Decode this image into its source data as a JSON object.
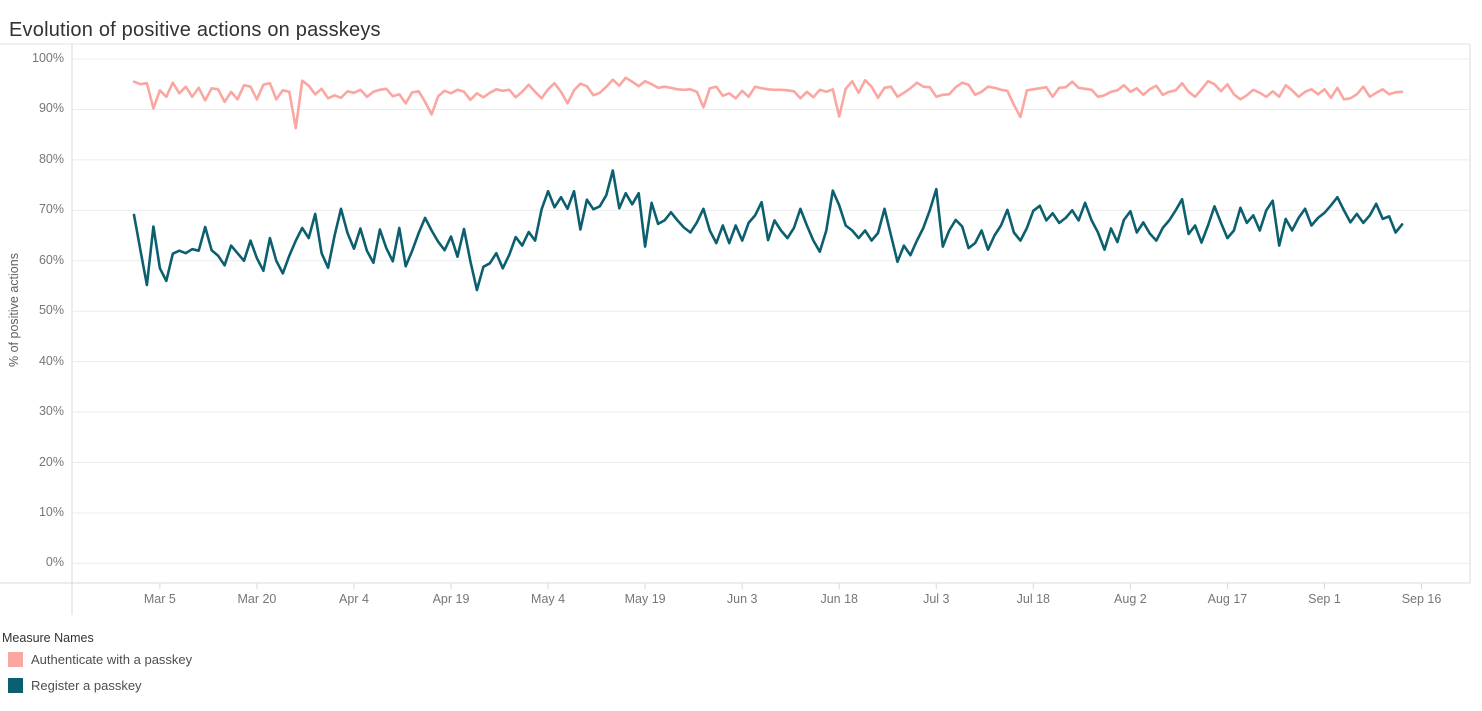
{
  "header": {
    "title": "Evolution of positive actions on passkeys"
  },
  "colors": {
    "title_text": "#323232",
    "tick_text": "#767676",
    "gridline": "#ececec",
    "axis_border": "#d9d9d9",
    "series_authenticate": "#FAA7A2",
    "series_register": "#0C5F6F"
  },
  "legend": {
    "title": "Measure Names",
    "position": "bottom-left",
    "items": [
      {
        "label": "Authenticate with a passkey",
        "color": "#FAA7A2"
      },
      {
        "label": "Register a passkey",
        "color": "#0C5F6F"
      }
    ]
  },
  "chart_data": {
    "type": "line",
    "title": "Evolution of positive actions on passkeys",
    "xlabel": "",
    "ylabel": "% of positive actions",
    "ylim": [
      0,
      100
    ],
    "grid": true,
    "legend_position": "bottom-left",
    "y_ticks": [
      "0%",
      "10%",
      "20%",
      "30%",
      "40%",
      "50%",
      "60%",
      "70%",
      "80%",
      "90%",
      "100%"
    ],
    "x_axis": {
      "start": "Mar 1",
      "end": "Sep 13",
      "frequency": "daily",
      "points": 197
    },
    "x_ticks": [
      {
        "label": "Mar 5",
        "day": 4
      },
      {
        "label": "Mar 20",
        "day": 19
      },
      {
        "label": "Apr 4",
        "day": 34
      },
      {
        "label": "Apr 19",
        "day": 49
      },
      {
        "label": "May 4",
        "day": 64
      },
      {
        "label": "May 19",
        "day": 79
      },
      {
        "label": "Jun 3",
        "day": 94
      },
      {
        "label": "Jun 18",
        "day": 109
      },
      {
        "label": "Jul 3",
        "day": 124
      },
      {
        "label": "Jul 18",
        "day": 139
      },
      {
        "label": "Aug 2",
        "day": 154
      },
      {
        "label": "Aug 17",
        "day": 169
      },
      {
        "label": "Sep 1",
        "day": 184
      },
      {
        "label": "Sep 16",
        "day": 199
      }
    ],
    "series": [
      {
        "name": "Authenticate with a passkey",
        "color": "#FAA7A2",
        "values": [
          95.5,
          95.0,
          95.2,
          90.2,
          93.8,
          92.5,
          95.3,
          93.2,
          94.5,
          92.5,
          94.3,
          91.8,
          94.2,
          94.0,
          91.5,
          93.5,
          92.0,
          94.8,
          94.5,
          92.0,
          94.9,
          95.2,
          92.0,
          93.8,
          93.5,
          86.3,
          95.7,
          94.7,
          93.0,
          94.1,
          92.2,
          92.8,
          92.3,
          93.6,
          93.3,
          93.9,
          92.5,
          93.5,
          93.9,
          94.1,
          92.6,
          93.0,
          91.2,
          93.4,
          93.6,
          91.5,
          89.0,
          92.6,
          93.7,
          93.2,
          93.9,
          93.5,
          91.9,
          93.2,
          92.4,
          93.3,
          94.0,
          93.7,
          93.9,
          92.4,
          93.5,
          94.9,
          93.5,
          92.2,
          94.0,
          95.2,
          93.5,
          91.2,
          93.8,
          95.1,
          94.6,
          92.8,
          93.3,
          94.5,
          95.9,
          94.7,
          96.3,
          95.5,
          94.6,
          95.6,
          95.0,
          94.3,
          94.5,
          94.3,
          94.0,
          93.9,
          94.0,
          93.5,
          90.4,
          94.2,
          94.5,
          92.7,
          93.2,
          92.2,
          93.7,
          92.5,
          94.5,
          94.2,
          94.0,
          93.9,
          93.9,
          93.8,
          93.6,
          92.2,
          93.5,
          92.4,
          93.9,
          93.5,
          94.0,
          88.6,
          94.1,
          95.6,
          93.3,
          95.8,
          94.5,
          92.3,
          94.3,
          94.5,
          92.5,
          93.3,
          94.2,
          95.3,
          94.5,
          94.4,
          92.5,
          92.9,
          93.0,
          94.4,
          95.3,
          94.9,
          92.9,
          93.5,
          94.5,
          94.3,
          93.9,
          93.7,
          90.9,
          88.5,
          93.8,
          94.0,
          94.2,
          94.4,
          92.5,
          94.3,
          94.4,
          95.5,
          94.3,
          94.1,
          93.9,
          92.5,
          92.8,
          93.5,
          93.8,
          94.8,
          93.5,
          94.2,
          92.9,
          94.0,
          94.7,
          92.9,
          93.5,
          93.8,
          95.2,
          93.5,
          92.5,
          94.0,
          95.6,
          95.0,
          93.6,
          95.0,
          93.0,
          92.0,
          92.8,
          93.9,
          93.3,
          92.5,
          93.6,
          92.5,
          94.8,
          93.8,
          92.5,
          93.5,
          94.0,
          93.0,
          94.0,
          92.3,
          94.3,
          92.0,
          92.2,
          93.0,
          94.5,
          92.5,
          93.3,
          94.0,
          93.0,
          93.4,
          93.5
        ]
      },
      {
        "name": "Register a passkey",
        "color": "#0C5F6F",
        "values": [
          69.1,
          62.0,
          55.2,
          66.8,
          58.5,
          56.0,
          61.4,
          62.0,
          61.5,
          62.3,
          62.0,
          66.7,
          62.1,
          61.0,
          59.1,
          63.0,
          61.5,
          60.0,
          64.0,
          60.5,
          58.0,
          64.5,
          60.0,
          57.5,
          61.0,
          64.0,
          66.5,
          64.5,
          69.3,
          61.5,
          58.6,
          65.0,
          70.3,
          65.5,
          62.4,
          66.4,
          62.0,
          59.6,
          66.2,
          62.5,
          59.9,
          66.5,
          58.9,
          62.0,
          65.5,
          68.5,
          66.0,
          63.8,
          62.1,
          64.8,
          60.8,
          66.3,
          59.9,
          54.2,
          58.8,
          59.5,
          61.5,
          58.5,
          61.2,
          64.7,
          63.0,
          65.7,
          64.0,
          70.2,
          73.8,
          70.6,
          72.6,
          70.3,
          73.8,
          66.2,
          72.1,
          70.2,
          70.8,
          73.0,
          77.9,
          70.4,
          73.4,
          71.2,
          73.4,
          62.8,
          71.5,
          67.3,
          68.0,
          69.6,
          68.0,
          66.6,
          65.6,
          67.6,
          70.3,
          66.0,
          63.5,
          67.0,
          63.5,
          67.0,
          64.0,
          67.5,
          69.0,
          71.6,
          64.1,
          68.0,
          66.0,
          64.5,
          66.5,
          70.3,
          67.0,
          64.0,
          61.8,
          66.0,
          73.9,
          71.0,
          67.0,
          66.0,
          64.5,
          66.0,
          64.0,
          65.5,
          70.3,
          65.0,
          59.8,
          63.0,
          61.1,
          64.0,
          66.5,
          70.0,
          74.2,
          62.8,
          66.0,
          68.1,
          66.8,
          62.5,
          63.5,
          66.0,
          62.2,
          65.0,
          67.0,
          70.1,
          65.6,
          64.0,
          66.5,
          69.9,
          70.9,
          68.0,
          69.4,
          67.5,
          68.5,
          70.0,
          68.0,
          71.5,
          68.0,
          65.6,
          62.2,
          66.4,
          63.7,
          68.1,
          69.8,
          65.6,
          67.6,
          65.4,
          64.0,
          66.5,
          68.0,
          70.0,
          72.2,
          65.3,
          67.0,
          63.6,
          67.0,
          70.8,
          67.5,
          64.5,
          66.0,
          70.5,
          67.5,
          69.0,
          66.0,
          70.0,
          71.9,
          63.0,
          68.3,
          66.0,
          68.5,
          70.3,
          67.0,
          68.5,
          69.5,
          71.0,
          72.6,
          70.0,
          67.6,
          69.3,
          67.5,
          69.0,
          71.3,
          68.3,
          68.8,
          65.6,
          67.2
        ]
      }
    ]
  }
}
